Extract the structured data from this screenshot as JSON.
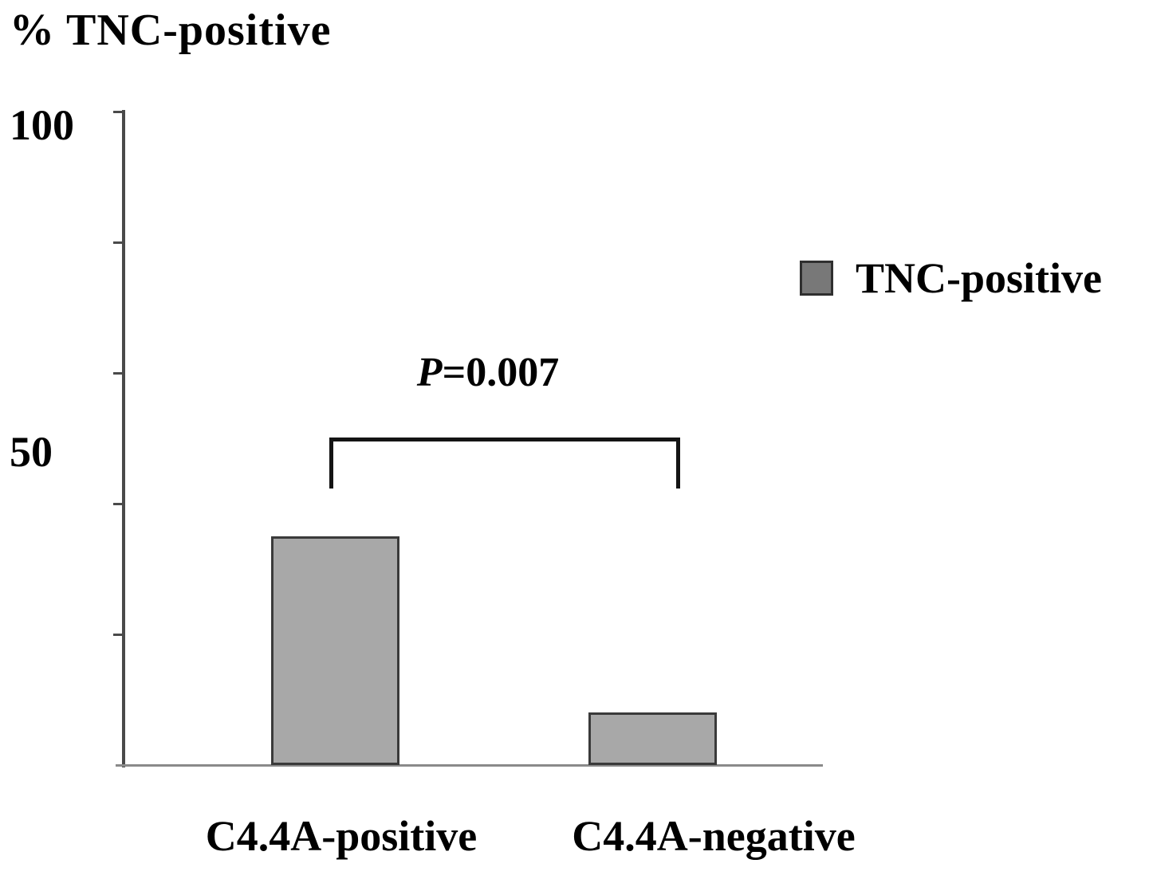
{
  "chart_data": {
    "type": "bar",
    "title": "% TNC-positive",
    "categories": [
      "C4.4A-positive",
      "C4.4A-negative"
    ],
    "values": [
      35,
      8
    ],
    "series": [
      {
        "name": "TNC-positive",
        "values": [
          35,
          8
        ]
      }
    ],
    "xlabel": "",
    "ylabel": "% TNC-positive",
    "ylim": [
      0,
      100
    ],
    "ytick_marks": [
      20,
      40,
      60,
      80,
      100
    ],
    "ytick_labels": [
      {
        "value": 100,
        "text": "100"
      },
      {
        "value": 50,
        "text": "50"
      }
    ],
    "grid": false,
    "legend": {
      "position": "upper right",
      "label": "TNC-positive"
    },
    "annotation": {
      "p_prefix": "P",
      "p_value": "=0.007",
      "compares": [
        "C4.4A-positive",
        "C4.4A-negative"
      ]
    }
  },
  "colors": {
    "bar_fill": "#a8a8a8",
    "bar_border": "#3a3a3a",
    "legend_fill": "#787878",
    "axis": "#4a4a4a",
    "bracket": "#141414",
    "text": "#000000"
  }
}
